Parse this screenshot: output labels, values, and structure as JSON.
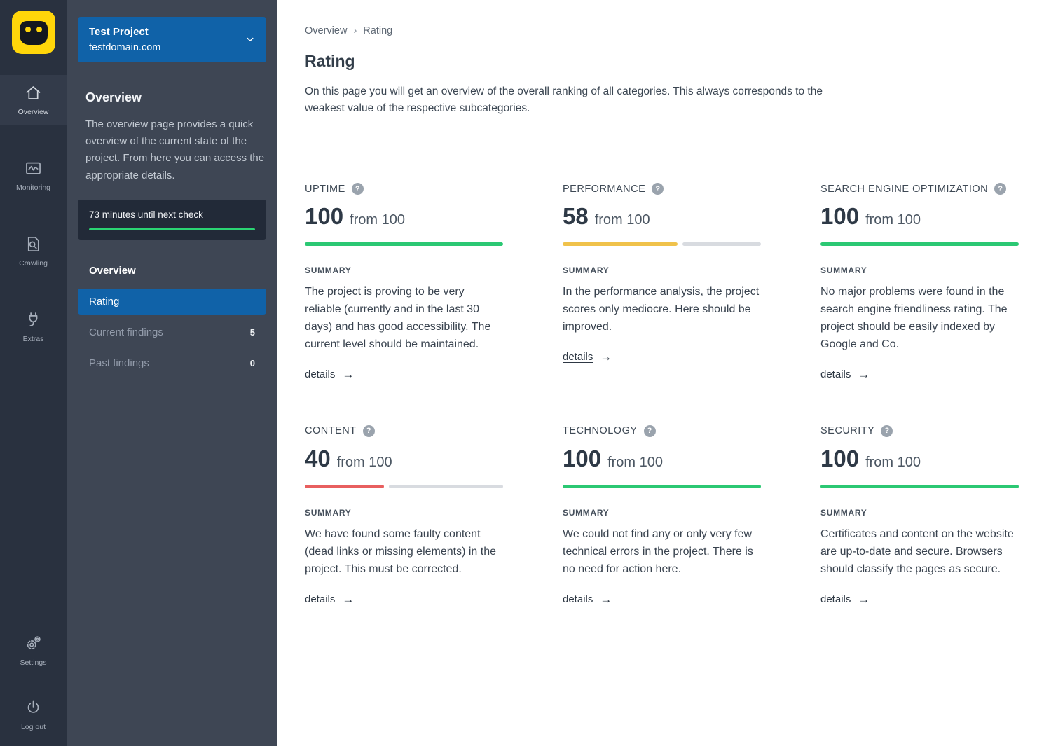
{
  "colors": {
    "accent_blue": "#1062a8",
    "green": "#2bc873",
    "yellow": "#f0c24b",
    "red": "#e85f5f",
    "track_gray": "#d8dbe0",
    "logo_yellow": "#ffd60a"
  },
  "sidebar": {
    "items": [
      {
        "label": "Overview",
        "icon": "home-icon",
        "active": true
      },
      {
        "label": "Monitoring",
        "icon": "monitoring-icon",
        "active": false
      },
      {
        "label": "Crawling",
        "icon": "crawl-icon",
        "active": false
      },
      {
        "label": "Extras",
        "icon": "plug-icon",
        "active": false
      },
      {
        "label": "Settings",
        "icon": "gear-icon",
        "active": false
      },
      {
        "label": "Log out",
        "icon": "power-icon",
        "active": false
      }
    ]
  },
  "project_panel": {
    "project_name": "Test Project",
    "project_domain": "testdomain.com",
    "section_title": "Overview",
    "description": "The overview page provides a quick overview of the current state of the project. From here you can access the appropriate details.",
    "next_check_label": "73 minutes until next check",
    "menu": [
      {
        "label": "Overview",
        "badge": ""
      },
      {
        "label": "Rating",
        "badge": ""
      },
      {
        "label": "Current findings",
        "badge": "5"
      },
      {
        "label": "Past findings",
        "badge": "0"
      }
    ]
  },
  "main": {
    "breadcrumb": [
      "Overview",
      "Rating"
    ],
    "breadcrumb_separator": "›",
    "title": "Rating",
    "description": "On this page you will get an overview of the overall ranking of all categories. This always corresponds to the weakest value of the respective subcategories.",
    "summary_label": "SUMMARY",
    "details_label": "details",
    "details_arrow": "→",
    "help_glyph": "?",
    "cards": [
      {
        "title": "UPTIME",
        "score": "100",
        "from": "from 100",
        "percent": 100,
        "color": "#2bc873",
        "summary": "The project is proving to be very reliable (currently and in the last 30 days) and has good accessibility. The current level should be maintained."
      },
      {
        "title": "PERFORMANCE",
        "score": "58",
        "from": "from 100",
        "percent": 58,
        "color": "#f0c24b",
        "summary": "In the performance analysis, the project scores only mediocre. Here should be improved."
      },
      {
        "title": "SEARCH ENGINE OPTIMIZATION",
        "score": "100",
        "from": "from 100",
        "percent": 100,
        "color": "#2bc873",
        "summary": "No major problems were found in the search engine friendliness rating. The project should be easily indexed by Google and Co."
      },
      {
        "title": "CONTENT",
        "score": "40",
        "from": "from 100",
        "percent": 40,
        "color": "#e85f5f",
        "summary": "We have found some faulty content (dead links or missing elements) in the project. This must be corrected."
      },
      {
        "title": "TECHNOLOGY",
        "score": "100",
        "from": "from 100",
        "percent": 100,
        "color": "#2bc873",
        "summary": "We could not find any or only very few technical errors in the project. There is no need for action here."
      },
      {
        "title": "SECURITY",
        "score": "100",
        "from": "from 100",
        "percent": 100,
        "color": "#2bc873",
        "summary": "Certificates and content on the website are up-to-date and secure. Browsers should classify the pages as secure."
      }
    ]
  }
}
